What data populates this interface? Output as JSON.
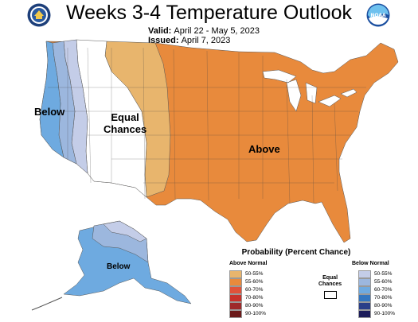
{
  "title": "Weeks 3-4 Temperature Outlook",
  "valid_label": "Valid:",
  "valid_value": "April 22 - May 5, 2023",
  "issued_label": "Issued:",
  "issued_value": "April 7, 2023",
  "map_labels": {
    "below_west": "Below",
    "equal_chances": "Equal\nChances",
    "above": "Above",
    "below_alaska": "Below"
  },
  "legend": {
    "title": "Probability (Percent Chance)",
    "above_header": "Above Normal",
    "below_header": "Below Normal",
    "equal_label_1": "Equal",
    "equal_label_2": "Chances",
    "ranges": [
      "50-55%",
      "55-60%",
      "60-70%",
      "70-80%",
      "80-90%",
      "90-100%"
    ],
    "above_colors": [
      "#e8b56d",
      "#e88a3c",
      "#e0523a",
      "#c8322b",
      "#9e2a2b",
      "#6b1a1a"
    ],
    "below_colors": [
      "#c4cde8",
      "#9cb7de",
      "#6eaae0",
      "#3376c0",
      "#2a3e88",
      "#1c1c5a"
    ]
  },
  "colors": {
    "above_55_60": "#e88a3c",
    "above_50_55": "#e8b56d",
    "below_50_55": "#c4cde8",
    "below_55_60": "#9cb7de",
    "below_60_70": "#6eaae0"
  },
  "icons": [
    "doc-seal-icon",
    "noaa-logo-icon"
  ]
}
